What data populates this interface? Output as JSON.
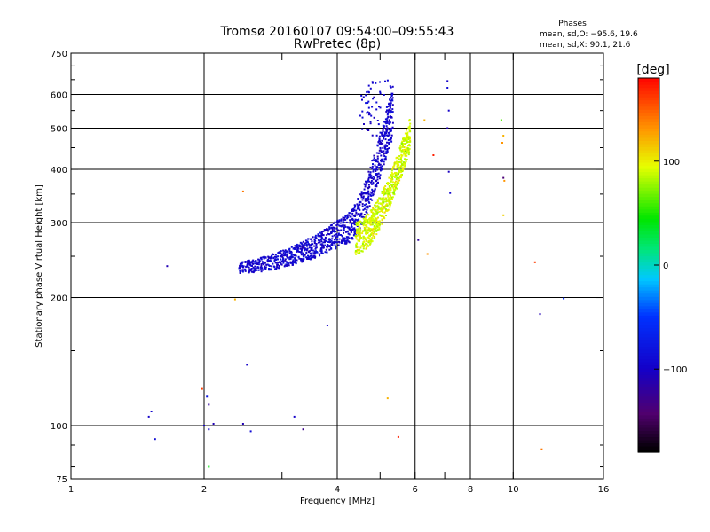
{
  "chart_data": {
    "type": "scatter",
    "title": "Tromsø 20160107 09:54:00–09:55:43",
    "subtitle": "RwPretec (8p)",
    "xlabel": "Frequency [MHz]",
    "ylabel": "Stationary phase Virtual Height [km]",
    "x_scale": "log2",
    "y_scale": "log",
    "xlim": [
      1,
      16
    ],
    "ylim": [
      75,
      750
    ],
    "x_ticks": [
      1,
      2,
      4,
      6,
      8,
      10,
      16
    ],
    "x_tick_labels": [
      "1",
      "2",
      "4",
      "6",
      "8",
      "10",
      "16"
    ],
    "x_grid": [
      2,
      4,
      6,
      8,
      10
    ],
    "x_minor": [
      3,
      5,
      7,
      9
    ],
    "y_ticks": [
      75,
      100,
      200,
      300,
      400,
      500,
      600,
      750
    ],
    "y_tick_labels": [
      "75",
      "100",
      "200",
      "300",
      "400",
      "500",
      "600",
      "750"
    ],
    "y_grid": [
      100,
      200,
      300,
      400,
      500,
      600
    ],
    "stats": {
      "header": "Phases",
      "line1": "mean, sd,O: −95.6, 19.6",
      "line2": "mean, sd,X:  90.1, 21.6"
    },
    "colorbar": {
      "label": "[deg]",
      "range": [
        -180,
        180
      ],
      "ticks": [
        100,
        0,
        -100
      ],
      "tick_labels": [
        "100",
        "0",
        "−100"
      ],
      "colormap": "rainbow"
    },
    "series": [
      {
        "name": "O-mode trace",
        "phase_mean": -95.6,
        "phase_sd": 19.6,
        "description": "dense band from ~2.4 MHz/230 km rising to ~5.3 MHz/600 km"
      },
      {
        "name": "X-mode trace",
        "phase_mean": 90.1,
        "phase_sd": 21.6,
        "description": "band from ~4.4 MHz/255 km rising to ~5.8 MHz/480 km"
      }
    ],
    "scattered_points": [
      {
        "x": 1.65,
        "y": 237,
        "phase": -110
      },
      {
        "x": 1.5,
        "y": 105,
        "phase": -100
      },
      {
        "x": 1.52,
        "y": 108,
        "phase": -95
      },
      {
        "x": 1.55,
        "y": 93,
        "phase": -90
      },
      {
        "x": 1.98,
        "y": 122,
        "phase": 160
      },
      {
        "x": 2.03,
        "y": 117,
        "phase": -80
      },
      {
        "x": 2.05,
        "y": 112,
        "phase": -120
      },
      {
        "x": 2.0,
        "y": 100,
        "phase": -100
      },
      {
        "x": 2.05,
        "y": 98,
        "phase": -95
      },
      {
        "x": 2.1,
        "y": 101,
        "phase": -110
      },
      {
        "x": 2.05,
        "y": 80,
        "phase": 40
      },
      {
        "x": 2.5,
        "y": 139,
        "phase": -100
      },
      {
        "x": 2.45,
        "y": 101,
        "phase": -110
      },
      {
        "x": 2.55,
        "y": 97,
        "phase": -90
      },
      {
        "x": 2.35,
        "y": 198,
        "phase": 120
      },
      {
        "x": 2.45,
        "y": 355,
        "phase": 140
      },
      {
        "x": 3.2,
        "y": 105,
        "phase": -100
      },
      {
        "x": 3.35,
        "y": 98,
        "phase": -130
      },
      {
        "x": 3.8,
        "y": 172,
        "phase": -100
      },
      {
        "x": 5.2,
        "y": 116,
        "phase": 120
      },
      {
        "x": 5.5,
        "y": 94,
        "phase": 170
      },
      {
        "x": 6.1,
        "y": 273,
        "phase": -120
      },
      {
        "x": 6.4,
        "y": 253,
        "phase": 130
      },
      {
        "x": 6.3,
        "y": 522,
        "phase": 120
      },
      {
        "x": 6.6,
        "y": 432,
        "phase": 170
      },
      {
        "x": 7.1,
        "y": 645,
        "phase": -100
      },
      {
        "x": 7.1,
        "y": 622,
        "phase": -90
      },
      {
        "x": 7.15,
        "y": 550,
        "phase": -100
      },
      {
        "x": 7.1,
        "y": 500,
        "phase": -110
      },
      {
        "x": 7.15,
        "y": 395,
        "phase": -105
      },
      {
        "x": 7.2,
        "y": 352,
        "phase": -95
      },
      {
        "x": 9.4,
        "y": 522,
        "phase": 60
      },
      {
        "x": 9.5,
        "y": 480,
        "phase": 120
      },
      {
        "x": 9.45,
        "y": 462,
        "phase": 130
      },
      {
        "x": 9.5,
        "y": 382,
        "phase": -140
      },
      {
        "x": 9.55,
        "y": 376,
        "phase": 130
      },
      {
        "x": 9.5,
        "y": 312,
        "phase": 110
      },
      {
        "x": 11.2,
        "y": 242,
        "phase": 160
      },
      {
        "x": 11.5,
        "y": 183,
        "phase": -110
      },
      {
        "x": 11.6,
        "y": 88,
        "phase": 140
      },
      {
        "x": 13.0,
        "y": 199,
        "phase": -60
      }
    ]
  }
}
